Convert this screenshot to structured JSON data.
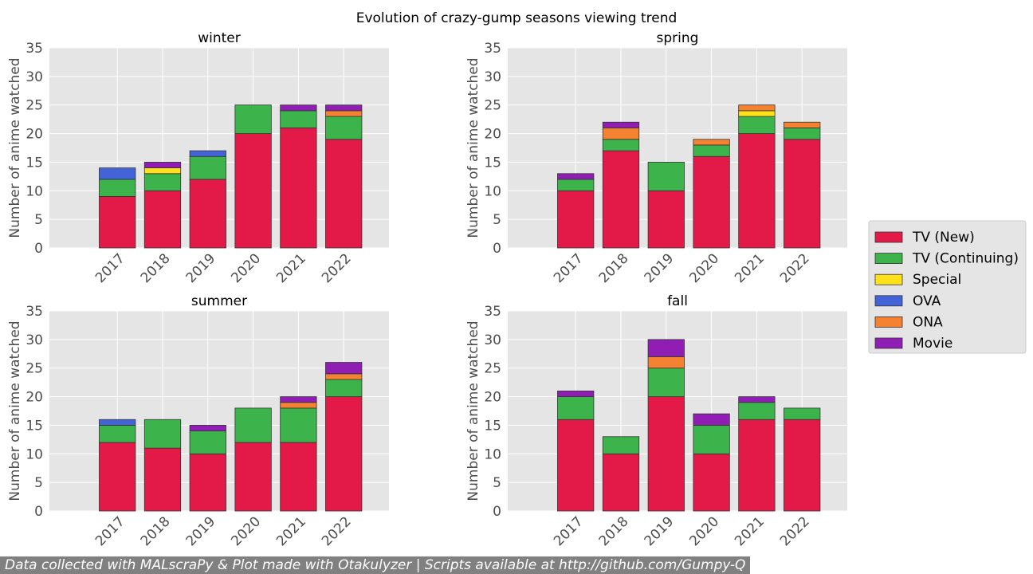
{
  "title": "Evolution of crazy-gump seasons viewing trend",
  "footer": "Data collected with MALscraPy & Plot made with Otakulyzer | Scripts available at http://github.com/Gumpy-Q",
  "colors": {
    "TV (New)": "#e31a47",
    "TV (Continuing)": "#3cb44b",
    "Special": "#ffe119",
    "OVA": "#4363d8",
    "ONA": "#f58231",
    "Movie": "#911eb4",
    "panel_background": "#e5e5e5",
    "grid": "#ffffff"
  },
  "legend": {
    "placement": "right",
    "entries": [
      "TV (New)",
      "TV (Continuing)",
      "Special",
      "OVA",
      "ONA",
      "Movie"
    ]
  },
  "chart_data": [
    {
      "type": "bar",
      "stacked": true,
      "title": "winter",
      "ylabel": "Number of anime watched",
      "xlabel": "",
      "ylim": [
        0,
        35
      ],
      "yticks": [
        "0",
        "5",
        "10",
        "15",
        "20",
        "25",
        "30",
        "35"
      ],
      "grid": true,
      "categories": [
        "2017",
        "2018",
        "2019",
        "2020",
        "2021",
        "2022"
      ],
      "series": [
        {
          "name": "TV (New)",
          "values": [
            9,
            10,
            12,
            20,
            21,
            19
          ]
        },
        {
          "name": "TV (Continuing)",
          "values": [
            3,
            3,
            4,
            5,
            3,
            4
          ]
        },
        {
          "name": "Special",
          "values": [
            0,
            1,
            0,
            0,
            0,
            0
          ]
        },
        {
          "name": "OVA",
          "values": [
            2,
            0,
            1,
            0,
            0,
            0
          ]
        },
        {
          "name": "ONA",
          "values": [
            0,
            0,
            0,
            0,
            0,
            1
          ]
        },
        {
          "name": "Movie",
          "values": [
            0,
            1,
            0,
            0,
            1,
            1
          ]
        }
      ]
    },
    {
      "type": "bar",
      "stacked": true,
      "title": "spring",
      "ylabel": "Number of anime watched",
      "xlabel": "",
      "ylim": [
        0,
        35
      ],
      "yticks": [
        "0",
        "5",
        "10",
        "15",
        "20",
        "25",
        "30",
        "35"
      ],
      "grid": true,
      "categories": [
        "2017",
        "2018",
        "2019",
        "2020",
        "2021",
        "2022"
      ],
      "series": [
        {
          "name": "TV (New)",
          "values": [
            10,
            17,
            10,
            16,
            20,
            19
          ]
        },
        {
          "name": "TV (Continuing)",
          "values": [
            2,
            2,
            5,
            2,
            3,
            2
          ]
        },
        {
          "name": "Special",
          "values": [
            0,
            0,
            0,
            0,
            1,
            0
          ]
        },
        {
          "name": "OVA",
          "values": [
            0,
            0,
            0,
            0,
            0,
            0
          ]
        },
        {
          "name": "ONA",
          "values": [
            0,
            2,
            0,
            1,
            1,
            1
          ]
        },
        {
          "name": "Movie",
          "values": [
            1,
            1,
            0,
            0,
            0,
            0
          ]
        }
      ]
    },
    {
      "type": "bar",
      "stacked": true,
      "title": "summer",
      "ylabel": "Number of anime watched",
      "xlabel": "",
      "ylim": [
        0,
        35
      ],
      "yticks": [
        "0",
        "5",
        "10",
        "15",
        "20",
        "25",
        "30",
        "35"
      ],
      "grid": true,
      "categories": [
        "2017",
        "2018",
        "2019",
        "2020",
        "2021",
        "2022"
      ],
      "series": [
        {
          "name": "TV (New)",
          "values": [
            12,
            11,
            10,
            12,
            12,
            20
          ]
        },
        {
          "name": "TV (Continuing)",
          "values": [
            3,
            5,
            4,
            6,
            6,
            3
          ]
        },
        {
          "name": "Special",
          "values": [
            0,
            0,
            0,
            0,
            0,
            0
          ]
        },
        {
          "name": "OVA",
          "values": [
            1,
            0,
            0,
            0,
            0,
            0
          ]
        },
        {
          "name": "ONA",
          "values": [
            0,
            0,
            0,
            0,
            1,
            1
          ]
        },
        {
          "name": "Movie",
          "values": [
            0,
            0,
            1,
            0,
            1,
            2
          ]
        }
      ]
    },
    {
      "type": "bar",
      "stacked": true,
      "title": "fall",
      "ylabel": "Number of anime watched",
      "xlabel": "",
      "ylim": [
        0,
        35
      ],
      "yticks": [
        "0",
        "5",
        "10",
        "15",
        "20",
        "25",
        "30",
        "35"
      ],
      "grid": true,
      "categories": [
        "2017",
        "2018",
        "2019",
        "2020",
        "2021",
        "2022"
      ],
      "series": [
        {
          "name": "TV (New)",
          "values": [
            16,
            10,
            20,
            10,
            16,
            16
          ]
        },
        {
          "name": "TV (Continuing)",
          "values": [
            4,
            3,
            5,
            5,
            3,
            2
          ]
        },
        {
          "name": "Special",
          "values": [
            0,
            0,
            0,
            0,
            0,
            0
          ]
        },
        {
          "name": "OVA",
          "values": [
            0,
            0,
            0,
            0,
            0,
            0
          ]
        },
        {
          "name": "ONA",
          "values": [
            0,
            0,
            2,
            0,
            0,
            0
          ]
        },
        {
          "name": "Movie",
          "values": [
            1,
            0,
            3,
            2,
            1,
            0
          ]
        }
      ]
    }
  ]
}
